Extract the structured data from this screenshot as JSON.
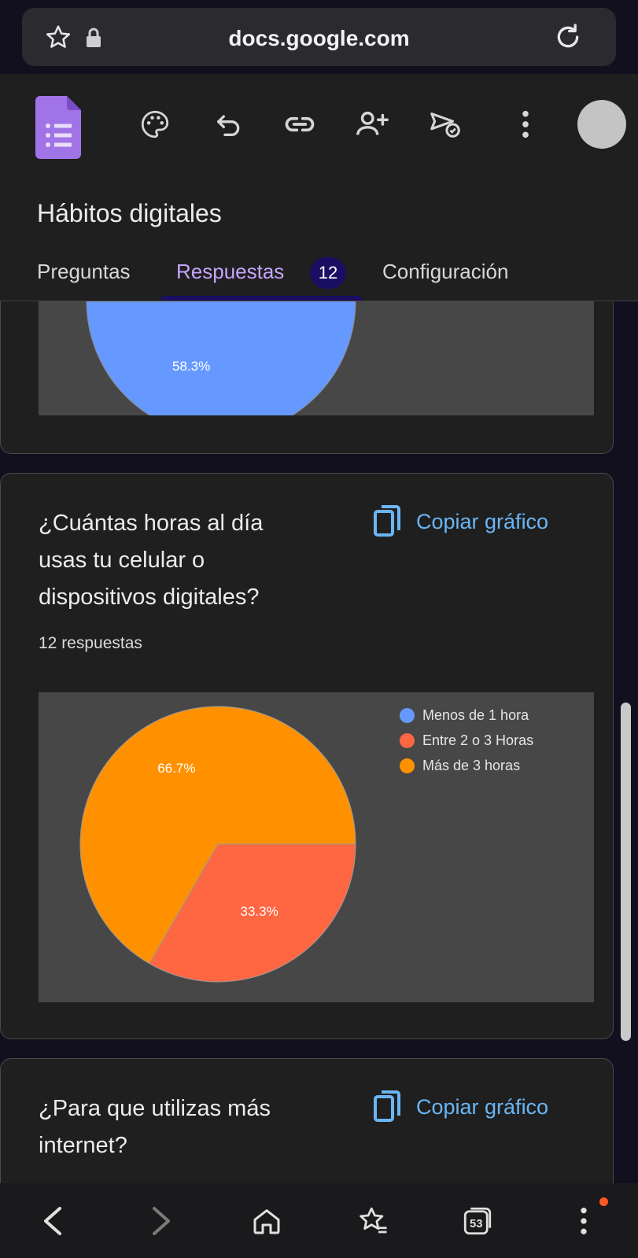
{
  "browser": {
    "url": "docs.google.com",
    "tab_count": "53"
  },
  "header": {
    "form_title": "Hábitos digitales",
    "tabs": [
      {
        "label": "Preguntas"
      },
      {
        "label": "Respuestas",
        "badge": "12"
      },
      {
        "label": "Configuración"
      }
    ],
    "active_tab": "Respuestas"
  },
  "previous_card": {
    "visible_slice_label": "58.3%",
    "slice_color": "#6699ff"
  },
  "question_card": {
    "title_lines": [
      "¿Cuántas horas al día",
      "usas tu celular o",
      "dispositivos digitales?"
    ],
    "response_count": "12 respuestas",
    "copy_label": "Copiar gráfico",
    "chart_data": {
      "type": "pie",
      "categories": [
        "Menos de 1 hora",
        "Entre 2 o 3 Horas",
        "Más de 3 horas"
      ],
      "values": [
        0,
        33.3,
        66.7
      ],
      "labels": [
        "",
        "33.3%",
        "66.7%"
      ],
      "colors": [
        "#6699ff",
        "#ff6642",
        "#ff9100"
      ],
      "legend_position": "right"
    }
  },
  "next_card": {
    "title_lines": [
      "¿Para que utilizas más",
      "internet?"
    ],
    "copy_label": "Copiar gráfico"
  }
}
